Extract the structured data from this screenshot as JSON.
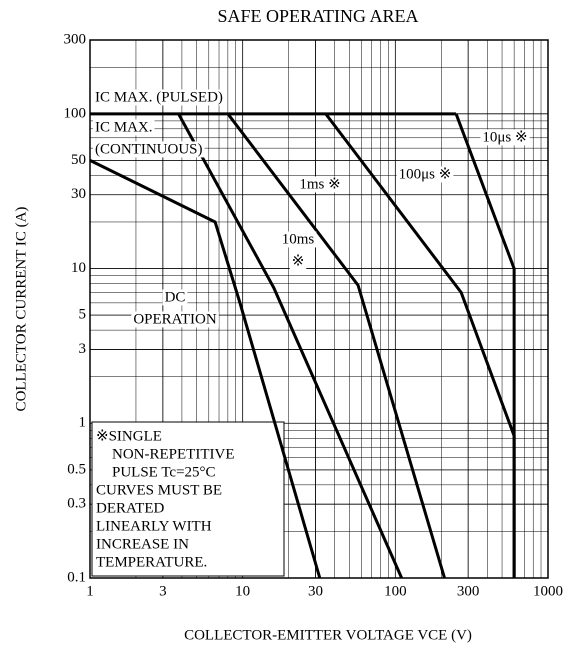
{
  "chart_data": {
    "type": "line",
    "title": "SAFE OPERATING AREA",
    "x_label": "COLLECTOR-EMITTER VOLTAGE VCE (V)",
    "y_label": "COLLECTOR CURRENT IC (A)",
    "log_x": true,
    "log_y": true,
    "grid": true,
    "xlim": [
      1,
      1000
    ],
    "ylim": [
      0.1,
      300
    ],
    "xticks": [
      1,
      3,
      10,
      30,
      100,
      300,
      1000
    ],
    "yticks": [
      0.1,
      0.3,
      0.5,
      1,
      3,
      5,
      10,
      30,
      50,
      100,
      300
    ],
    "series": [
      {
        "color": "#000000",
        "x": [
          1,
          250
        ],
        "values": [
          100,
          100
        ]
      },
      {
        "color": "#000000",
        "x": [
          1,
          6.6,
          9.6,
          32
        ],
        "values": [
          50,
          20,
          6,
          0.1
        ]
      },
      {
        "color": "#000000",
        "x": [
          3.8,
          16,
          110
        ],
        "values": [
          100,
          7.5,
          0.1
        ]
      },
      {
        "color": "#000000",
        "x": [
          8,
          57,
          210
        ],
        "values": [
          100,
          7.8,
          0.1
        ]
      },
      {
        "color": "#000000",
        "x": [
          35,
          270,
          600,
          600
        ],
        "values": [
          100,
          7,
          0.83,
          0.1
        ]
      },
      {
        "color": "#000000",
        "x": [
          250,
          600,
          600
        ],
        "values": [
          100,
          10,
          0.1
        ]
      }
    ],
    "annotations": [
      "IC MAX. (PULSED)",
      "IC MAX.",
      "(CONTINUOUS)",
      "DC",
      "OPERATION",
      "10ms",
      "※",
      "1ms ※",
      "100μs ※",
      "10μs ※"
    ],
    "note": [
      "※SINGLE",
      "NON-REPETITIVE",
      "PULSE   Tc=25°C",
      "CURVES MUST BE",
      "DERATED",
      "LINEARLY WITH",
      "INCREASE IN",
      "TEMPERATURE."
    ]
  }
}
